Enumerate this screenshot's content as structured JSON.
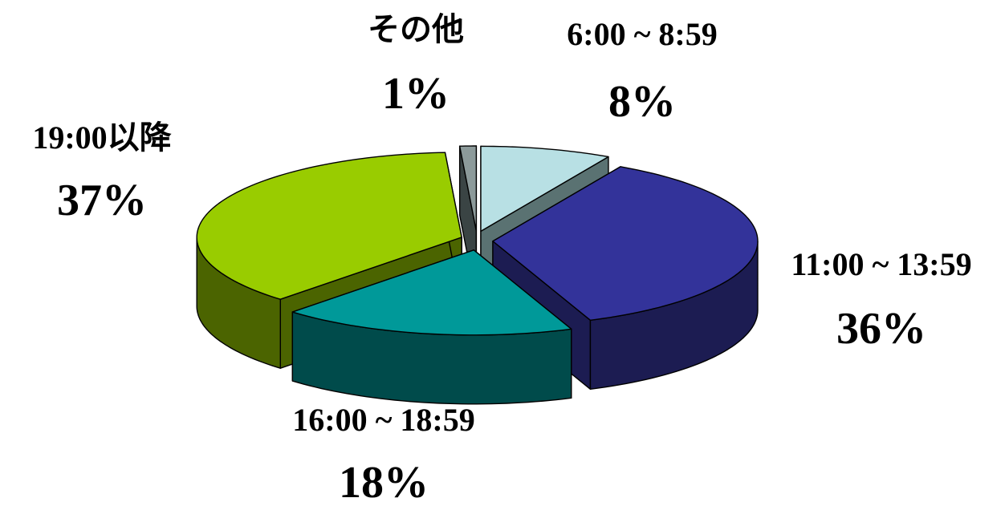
{
  "chart_data": {
    "type": "pie",
    "title": "",
    "style": "3d-exploded",
    "slices": [
      {
        "label": "6:00 ~ 8:59",
        "value": 8,
        "value_label": "8%",
        "color_top": "#b8e0e4",
        "color_side": "#5a7272"
      },
      {
        "label": "11:00 ~ 13:59",
        "value": 36,
        "value_label": "36%",
        "color_top": "#33339a",
        "color_side": "#1c1c52"
      },
      {
        "label": "16:00 ~ 18:59",
        "value": 18,
        "value_label": "18%",
        "color_top": "#009999",
        "color_side": "#004b4b"
      },
      {
        "label": "19:00以降",
        "value": 37,
        "value_label": "37%",
        "color_top": "#99cc00",
        "color_side": "#4b6400"
      },
      {
        "label": "その他",
        "value": 1,
        "value_label": "1%",
        "color_top": "#8c9a9a",
        "color_side": "#3a4444"
      }
    ]
  }
}
